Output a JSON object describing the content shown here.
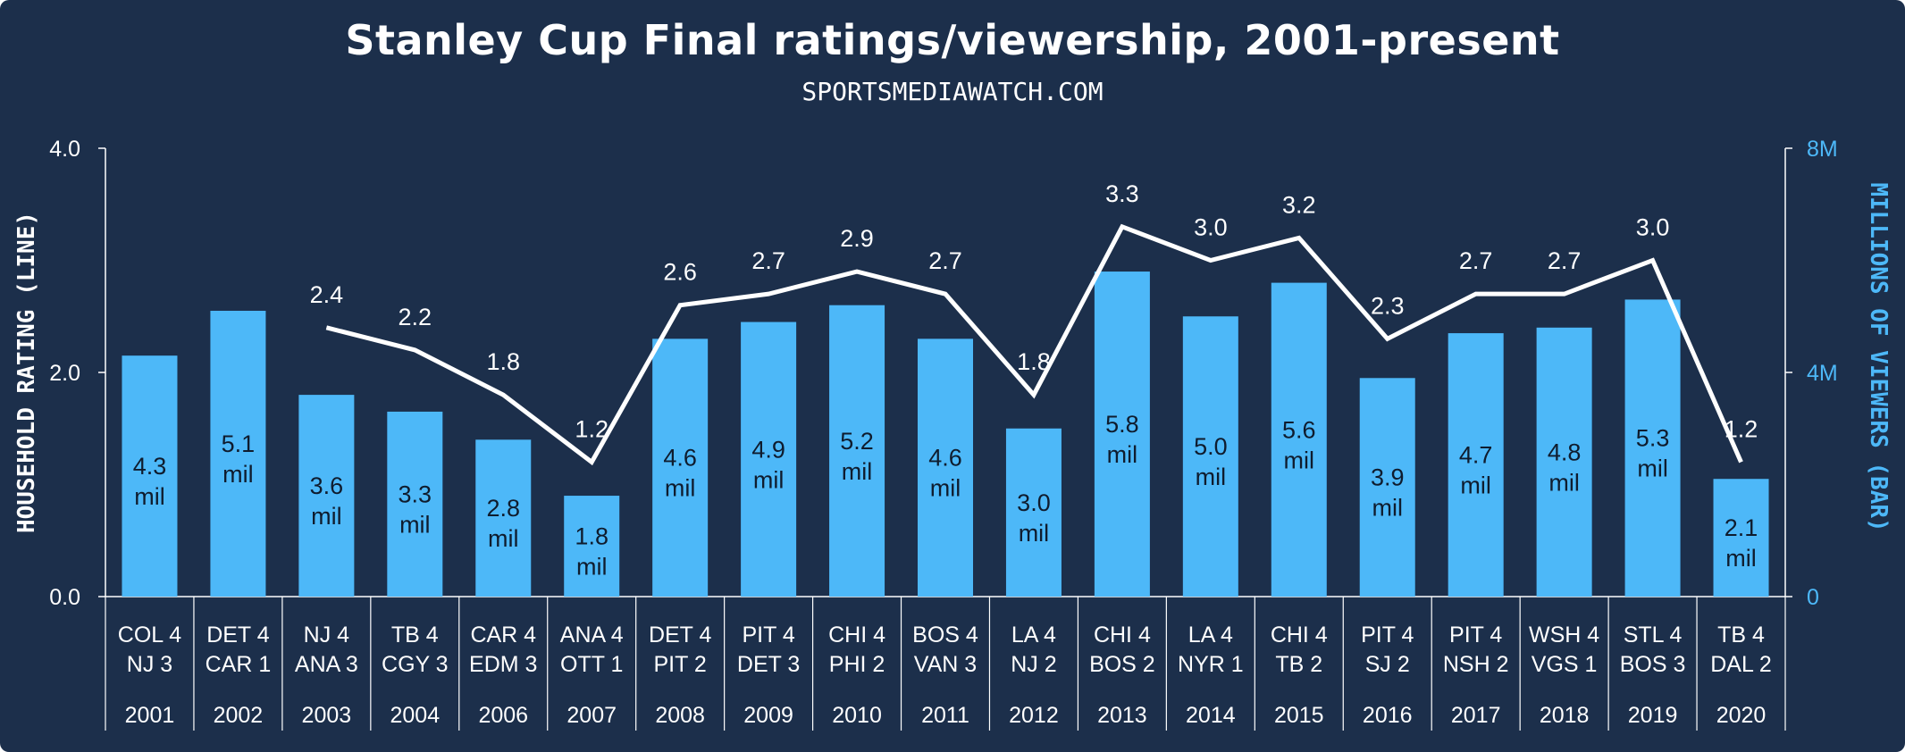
{
  "title": "Stanley Cup Final ratings/viewership, 2001-present",
  "subtitle": "SPORTSMEDIAWATCH.COM",
  "colors": {
    "background": "#1c2f4b",
    "bar": "#4db8f8",
    "line": "#ffffff",
    "right_axis": "#4db8f8",
    "text": "#ffffff"
  },
  "chart_data": {
    "type": "bar",
    "title": "Stanley Cup Final ratings/viewership, 2001-present",
    "subtitle": "SPORTSMEDIAWATCH.COM",
    "categories": [
      "2001",
      "2002",
      "2003",
      "2004",
      "2006",
      "2007",
      "2008",
      "2009",
      "2010",
      "2011",
      "2012",
      "2013",
      "2014",
      "2015",
      "2016",
      "2017",
      "2018",
      "2019",
      "2020"
    ],
    "matchups": [
      [
        "COL 4",
        "NJ 3"
      ],
      [
        "DET 4",
        "CAR 1"
      ],
      [
        "NJ 4",
        "ANA 3"
      ],
      [
        "TB 4",
        "CGY 3"
      ],
      [
        "CAR 4",
        "EDM 3"
      ],
      [
        "ANA 4",
        "OTT 1"
      ],
      [
        "DET 4",
        "PIT 2"
      ],
      [
        "PIT 4",
        "DET 3"
      ],
      [
        "CHI 4",
        "PHI 2"
      ],
      [
        "BOS 4",
        "VAN 3"
      ],
      [
        "LA 4",
        "NJ 2"
      ],
      [
        "CHI 4",
        "BOS 2"
      ],
      [
        "LA 4",
        "NYR 1"
      ],
      [
        "CHI 4",
        "TB 2"
      ],
      [
        "PIT 4",
        "SJ 2"
      ],
      [
        "PIT 4",
        "NSH 2"
      ],
      [
        "WSH 4",
        "VGS 1"
      ],
      [
        "STL 4",
        "BOS 3"
      ],
      [
        "TB 4",
        "DAL 2"
      ]
    ],
    "series": [
      {
        "name": "MILLIONS OF VIEWERS (BAR)",
        "axis": "right",
        "values": [
          4.3,
          5.1,
          3.6,
          3.3,
          2.8,
          1.8,
          4.6,
          4.9,
          5.2,
          4.6,
          3.0,
          5.8,
          5.0,
          5.6,
          3.9,
          4.7,
          4.8,
          5.3,
          2.1
        ],
        "labels": [
          "4.3",
          "5.1",
          "3.6",
          "3.3",
          "2.8",
          "1.8",
          "4.6",
          "4.9",
          "5.2",
          "4.6",
          "3.0",
          "5.8",
          "5.0",
          "5.6",
          "3.9",
          "4.7",
          "4.8",
          "5.3",
          "2.1"
        ],
        "label_suffix": "mil"
      },
      {
        "name": "HOUSEHOLD RATING (LINE)",
        "axis": "left",
        "type": "line",
        "values": [
          null,
          null,
          2.4,
          2.2,
          1.8,
          1.2,
          2.6,
          2.7,
          2.9,
          2.7,
          1.8,
          3.3,
          3.0,
          3.2,
          2.3,
          2.7,
          2.7,
          3.0,
          1.2
        ],
        "labels": [
          "",
          "",
          "2.4",
          "2.2",
          "1.8",
          "1.2",
          "2.6",
          "2.7",
          "2.9",
          "2.7",
          "1.8",
          "3.3",
          "3.0",
          "3.2",
          "2.3",
          "2.7",
          "2.7",
          "3.0",
          "1.2"
        ]
      }
    ],
    "ylabel": "HOUSEHOLD RATING (LINE)",
    "y2label": "MILLIONS OF VIEWERS (BAR)",
    "ylim": [
      0,
      4
    ],
    "y2lim": [
      0,
      8
    ],
    "yticks": [
      "0.0",
      "2.0",
      "4.0"
    ],
    "y2ticks": [
      "0",
      "4M",
      "8M"
    ],
    "grid": false
  }
}
